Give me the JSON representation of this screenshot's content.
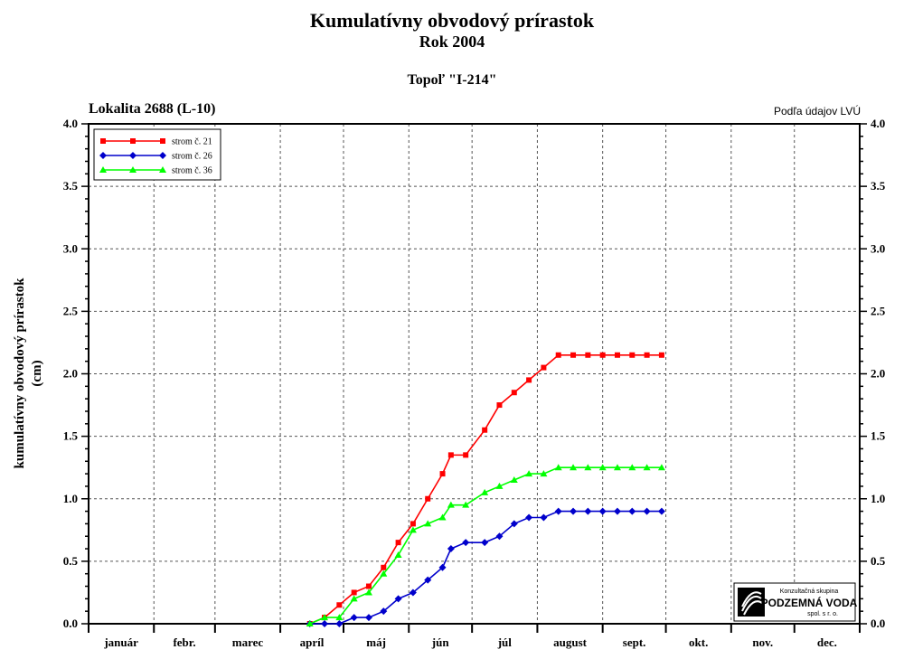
{
  "header": {
    "title": "Kumulatívny obvodový prírastok",
    "year": "Rok 2004",
    "subtitle": "Topoľ \"I-214\"",
    "locality": "Lokalita 2688 (L-10)",
    "source": "Podľa údajov LVÚ"
  },
  "logo": {
    "line1": "Konzultačná skupina",
    "line2": "PODZEMNÁ VODA",
    "line3": "spol. s r. o."
  },
  "chart_data": {
    "type": "line",
    "ylabel": "kumulatívny obvodový prírastok",
    "yunit": "(cm)",
    "ylim": [
      0,
      4.0
    ],
    "yticks": [
      "0.0",
      "0.5",
      "1.0",
      "1.5",
      "2.0",
      "2.5",
      "3.0",
      "3.5",
      "4.0"
    ],
    "xlim": [
      "2004-01-01",
      "2005-01-01"
    ],
    "months": [
      "január",
      "febr.",
      "marec",
      "apríl",
      "máj",
      "jún",
      "júl",
      "august",
      "sept.",
      "okt.",
      "nov.",
      "dec."
    ],
    "grid": true,
    "legend_position": "top-left",
    "series": [
      {
        "name": "strom č. 21",
        "color": "#ff0000",
        "marker": "square",
        "x": [
          "2004-04-15",
          "2004-04-22",
          "2004-04-29",
          "2004-05-06",
          "2004-05-13",
          "2004-05-20",
          "2004-05-27",
          "2004-06-03",
          "2004-06-10",
          "2004-06-17",
          "2004-06-21",
          "2004-06-28",
          "2004-07-07",
          "2004-07-14",
          "2004-07-21",
          "2004-07-28",
          "2004-08-04",
          "2004-08-11",
          "2004-08-18",
          "2004-08-25",
          "2004-09-01",
          "2004-09-08",
          "2004-09-15",
          "2004-09-22",
          "2004-09-29"
        ],
        "y": [
          0.0,
          0.05,
          0.15,
          0.25,
          0.3,
          0.45,
          0.65,
          0.8,
          1.0,
          1.2,
          1.35,
          1.35,
          1.55,
          1.75,
          1.85,
          1.95,
          2.05,
          2.15,
          2.15,
          2.15,
          2.15,
          2.15,
          2.15,
          2.15,
          2.15
        ]
      },
      {
        "name": "strom č. 26",
        "color": "#0000cc",
        "marker": "diamond",
        "x": [
          "2004-04-15",
          "2004-04-22",
          "2004-04-29",
          "2004-05-06",
          "2004-05-13",
          "2004-05-20",
          "2004-05-27",
          "2004-06-03",
          "2004-06-10",
          "2004-06-17",
          "2004-06-21",
          "2004-06-28",
          "2004-07-07",
          "2004-07-14",
          "2004-07-21",
          "2004-07-28",
          "2004-08-04",
          "2004-08-11",
          "2004-08-18",
          "2004-08-25",
          "2004-09-01",
          "2004-09-08",
          "2004-09-15",
          "2004-09-22",
          "2004-09-29"
        ],
        "y": [
          0.0,
          0.0,
          0.0,
          0.05,
          0.05,
          0.1,
          0.2,
          0.25,
          0.35,
          0.45,
          0.6,
          0.65,
          0.65,
          0.7,
          0.8,
          0.85,
          0.85,
          0.9,
          0.9,
          0.9,
          0.9,
          0.9,
          0.9,
          0.9,
          0.9
        ]
      },
      {
        "name": "strom č. 36",
        "color": "#00ff00",
        "marker": "triangle",
        "x": [
          "2004-04-15",
          "2004-04-22",
          "2004-04-29",
          "2004-05-06",
          "2004-05-13",
          "2004-05-20",
          "2004-05-27",
          "2004-06-03",
          "2004-06-10",
          "2004-06-17",
          "2004-06-21",
          "2004-06-28",
          "2004-07-07",
          "2004-07-14",
          "2004-07-21",
          "2004-07-28",
          "2004-08-04",
          "2004-08-11",
          "2004-08-18",
          "2004-08-25",
          "2004-09-01",
          "2004-09-08",
          "2004-09-15",
          "2004-09-22",
          "2004-09-29"
        ],
        "y": [
          0.0,
          0.05,
          0.05,
          0.2,
          0.25,
          0.4,
          0.55,
          0.75,
          0.8,
          0.85,
          0.95,
          0.95,
          1.05,
          1.1,
          1.15,
          1.2,
          1.2,
          1.25,
          1.25,
          1.25,
          1.25,
          1.25,
          1.25,
          1.25,
          1.25
        ]
      }
    ]
  }
}
